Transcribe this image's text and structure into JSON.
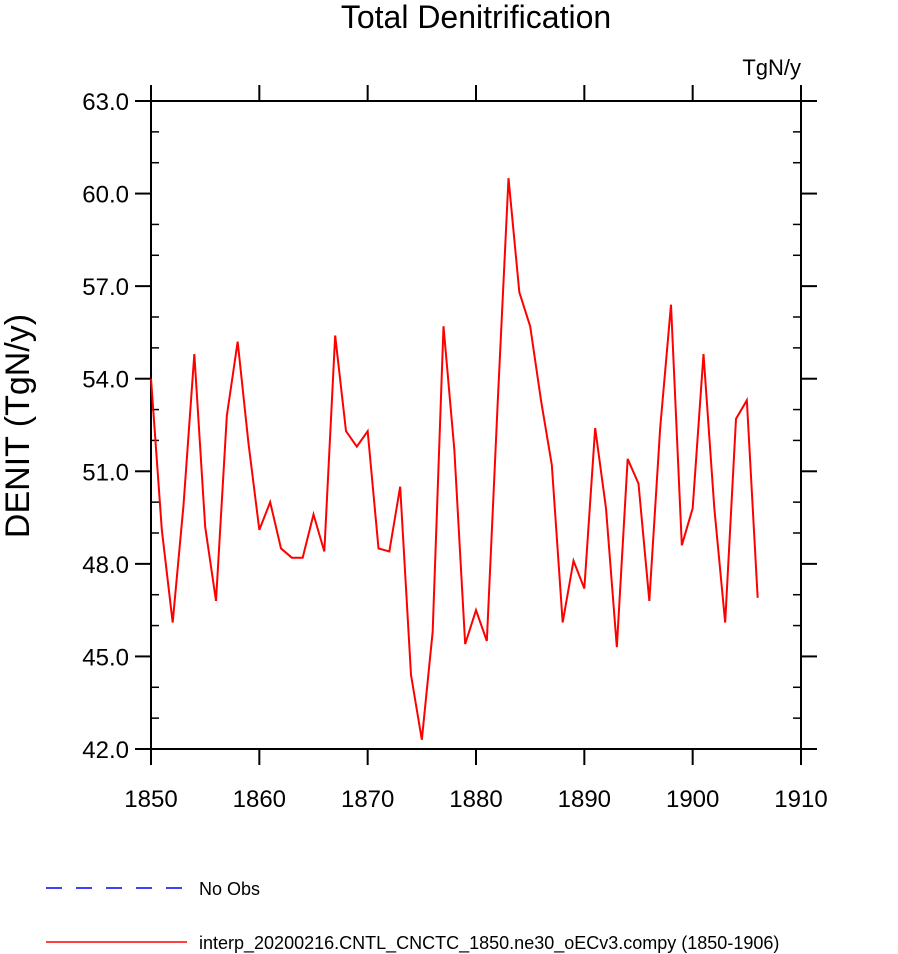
{
  "chart_data": {
    "type": "line",
    "title": "Total Denitrification",
    "units_label": "TgN/y",
    "ylabel": "DENIT  (TgN/y)",
    "xlabel": "",
    "xlim": [
      1850,
      1910
    ],
    "ylim": [
      42.0,
      63.0
    ],
    "x_ticks": [
      1850,
      1860,
      1870,
      1880,
      1890,
      1900,
      1910
    ],
    "x_tick_labels": [
      "1850",
      "1860",
      "1870",
      "1880",
      "1890",
      "1900",
      "1910"
    ],
    "y_ticks": [
      42.0,
      45.0,
      48.0,
      51.0,
      54.0,
      57.0,
      60.0,
      63.0
    ],
    "y_tick_labels": [
      "42.0",
      "45.0",
      "48.0",
      "51.0",
      "54.0",
      "57.0",
      "60.0",
      "63.0"
    ],
    "grid": false,
    "legend_position": "bottom",
    "series": [
      {
        "name": "No Obs",
        "color": "#0000ff",
        "style": "dashed",
        "x": [],
        "values": []
      },
      {
        "name": "interp_20200216.CNTL_CNCTC_1850.ne30_oECv3.compy (1850-1906)",
        "color": "#ff0000",
        "style": "solid",
        "x": [
          1850,
          1851,
          1852,
          1853,
          1854,
          1855,
          1856,
          1857,
          1858,
          1859,
          1860,
          1861,
          1862,
          1863,
          1864,
          1865,
          1866,
          1867,
          1868,
          1869,
          1870,
          1871,
          1872,
          1873,
          1874,
          1875,
          1876,
          1877,
          1878,
          1879,
          1880,
          1881,
          1882,
          1883,
          1884,
          1885,
          1886,
          1887,
          1888,
          1889,
          1890,
          1891,
          1892,
          1893,
          1894,
          1895,
          1896,
          1897,
          1898,
          1899,
          1900,
          1901,
          1902,
          1903,
          1904,
          1905,
          1906
        ],
        "values": [
          54.0,
          49.1,
          46.1,
          49.9,
          54.8,
          49.2,
          46.8,
          52.8,
          55.2,
          51.9,
          49.1,
          50.0,
          48.5,
          48.2,
          48.2,
          49.6,
          48.4,
          55.4,
          52.3,
          51.8,
          52.3,
          48.5,
          48.4,
          50.5,
          44.4,
          42.3,
          45.8,
          55.7,
          51.7,
          45.4,
          46.5,
          45.5,
          53.2,
          60.5,
          56.8,
          55.7,
          53.3,
          51.2,
          46.1,
          48.1,
          47.2,
          52.4,
          49.8,
          45.3,
          51.4,
          50.6,
          46.8,
          52.4,
          56.4,
          48.6,
          49.8,
          54.8,
          49.8,
          46.1,
          52.7,
          53.3,
          46.9
        ]
      }
    ]
  }
}
